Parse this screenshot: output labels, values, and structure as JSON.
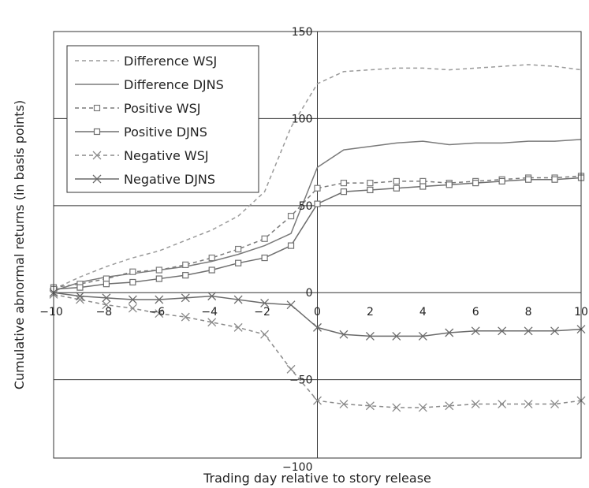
{
  "chart_data": {
    "type": "line",
    "xlabel": "Trading day relative to story release",
    "ylabel": "Cumulative abnormal returns (in basis points)",
    "xlim": [
      -10,
      10
    ],
    "ylim": [
      -95,
      150
    ],
    "x_ticks": [
      -10,
      -8,
      -6,
      -4,
      -2,
      0,
      2,
      4,
      6,
      8,
      10
    ],
    "y_ticks": [
      -100,
      -50,
      0,
      50,
      100,
      150
    ],
    "grid": "horizontal at y ticks, vertical at x=0",
    "legend_position": "top-left",
    "x": [
      -10,
      -9,
      -8,
      -7,
      -6,
      -5,
      -4,
      -3,
      -2,
      -1,
      0,
      1,
      2,
      3,
      4,
      5,
      6,
      7,
      8,
      9,
      10
    ],
    "series": [
      {
        "name": "Difference WSJ",
        "style": "dashed",
        "marker": "none",
        "color": "#9a9a9a",
        "values": [
          2,
          9,
          15,
          20,
          24,
          30,
          36,
          44,
          58,
          95,
          120,
          127,
          128,
          129,
          129,
          128,
          129,
          130,
          131,
          130,
          128
        ]
      },
      {
        "name": "Difference DJNS",
        "style": "solid",
        "marker": "none",
        "color": "#7a7a7a",
        "values": [
          1,
          6,
          9,
          11,
          13,
          15,
          18,
          22,
          27,
          34,
          72,
          82,
          84,
          86,
          87,
          85,
          86,
          86,
          87,
          87,
          88
        ]
      },
      {
        "name": "Positive WSJ",
        "style": "dashed",
        "marker": "square",
        "color": "#7a7a7a",
        "values": [
          3,
          5,
          8,
          12,
          13,
          16,
          20,
          25,
          31,
          44,
          60,
          63,
          63,
          64,
          64,
          63,
          64,
          65,
          66,
          66,
          67
        ]
      },
      {
        "name": "Positive DJNS",
        "style": "solid",
        "marker": "square",
        "color": "#6e6e6e",
        "values": [
          2,
          3,
          5,
          6,
          8,
          10,
          13,
          17,
          20,
          27,
          51,
          58,
          59,
          60,
          61,
          62,
          63,
          64,
          65,
          65,
          66
        ]
      },
      {
        "name": "Negative WSJ",
        "style": "dashed",
        "marker": "x",
        "color": "#8a8a8a",
        "values": [
          -1,
          -4,
          -7,
          -9,
          -12,
          -14,
          -17,
          -20,
          -24,
          -44,
          -62,
          -64,
          -65,
          -66,
          -66,
          -65,
          -64,
          -64,
          -64,
          -64,
          -62
        ]
      },
      {
        "name": "Negative DJNS",
        "style": "solid",
        "marker": "x",
        "color": "#6a6a6a",
        "values": [
          0,
          -2,
          -3,
          -4,
          -4,
          -3,
          -2,
          -4,
          -6,
          -7,
          -20,
          -24,
          -25,
          -25,
          -25,
          -23,
          -22,
          -22,
          -22,
          -22,
          -21
        ]
      }
    ]
  }
}
